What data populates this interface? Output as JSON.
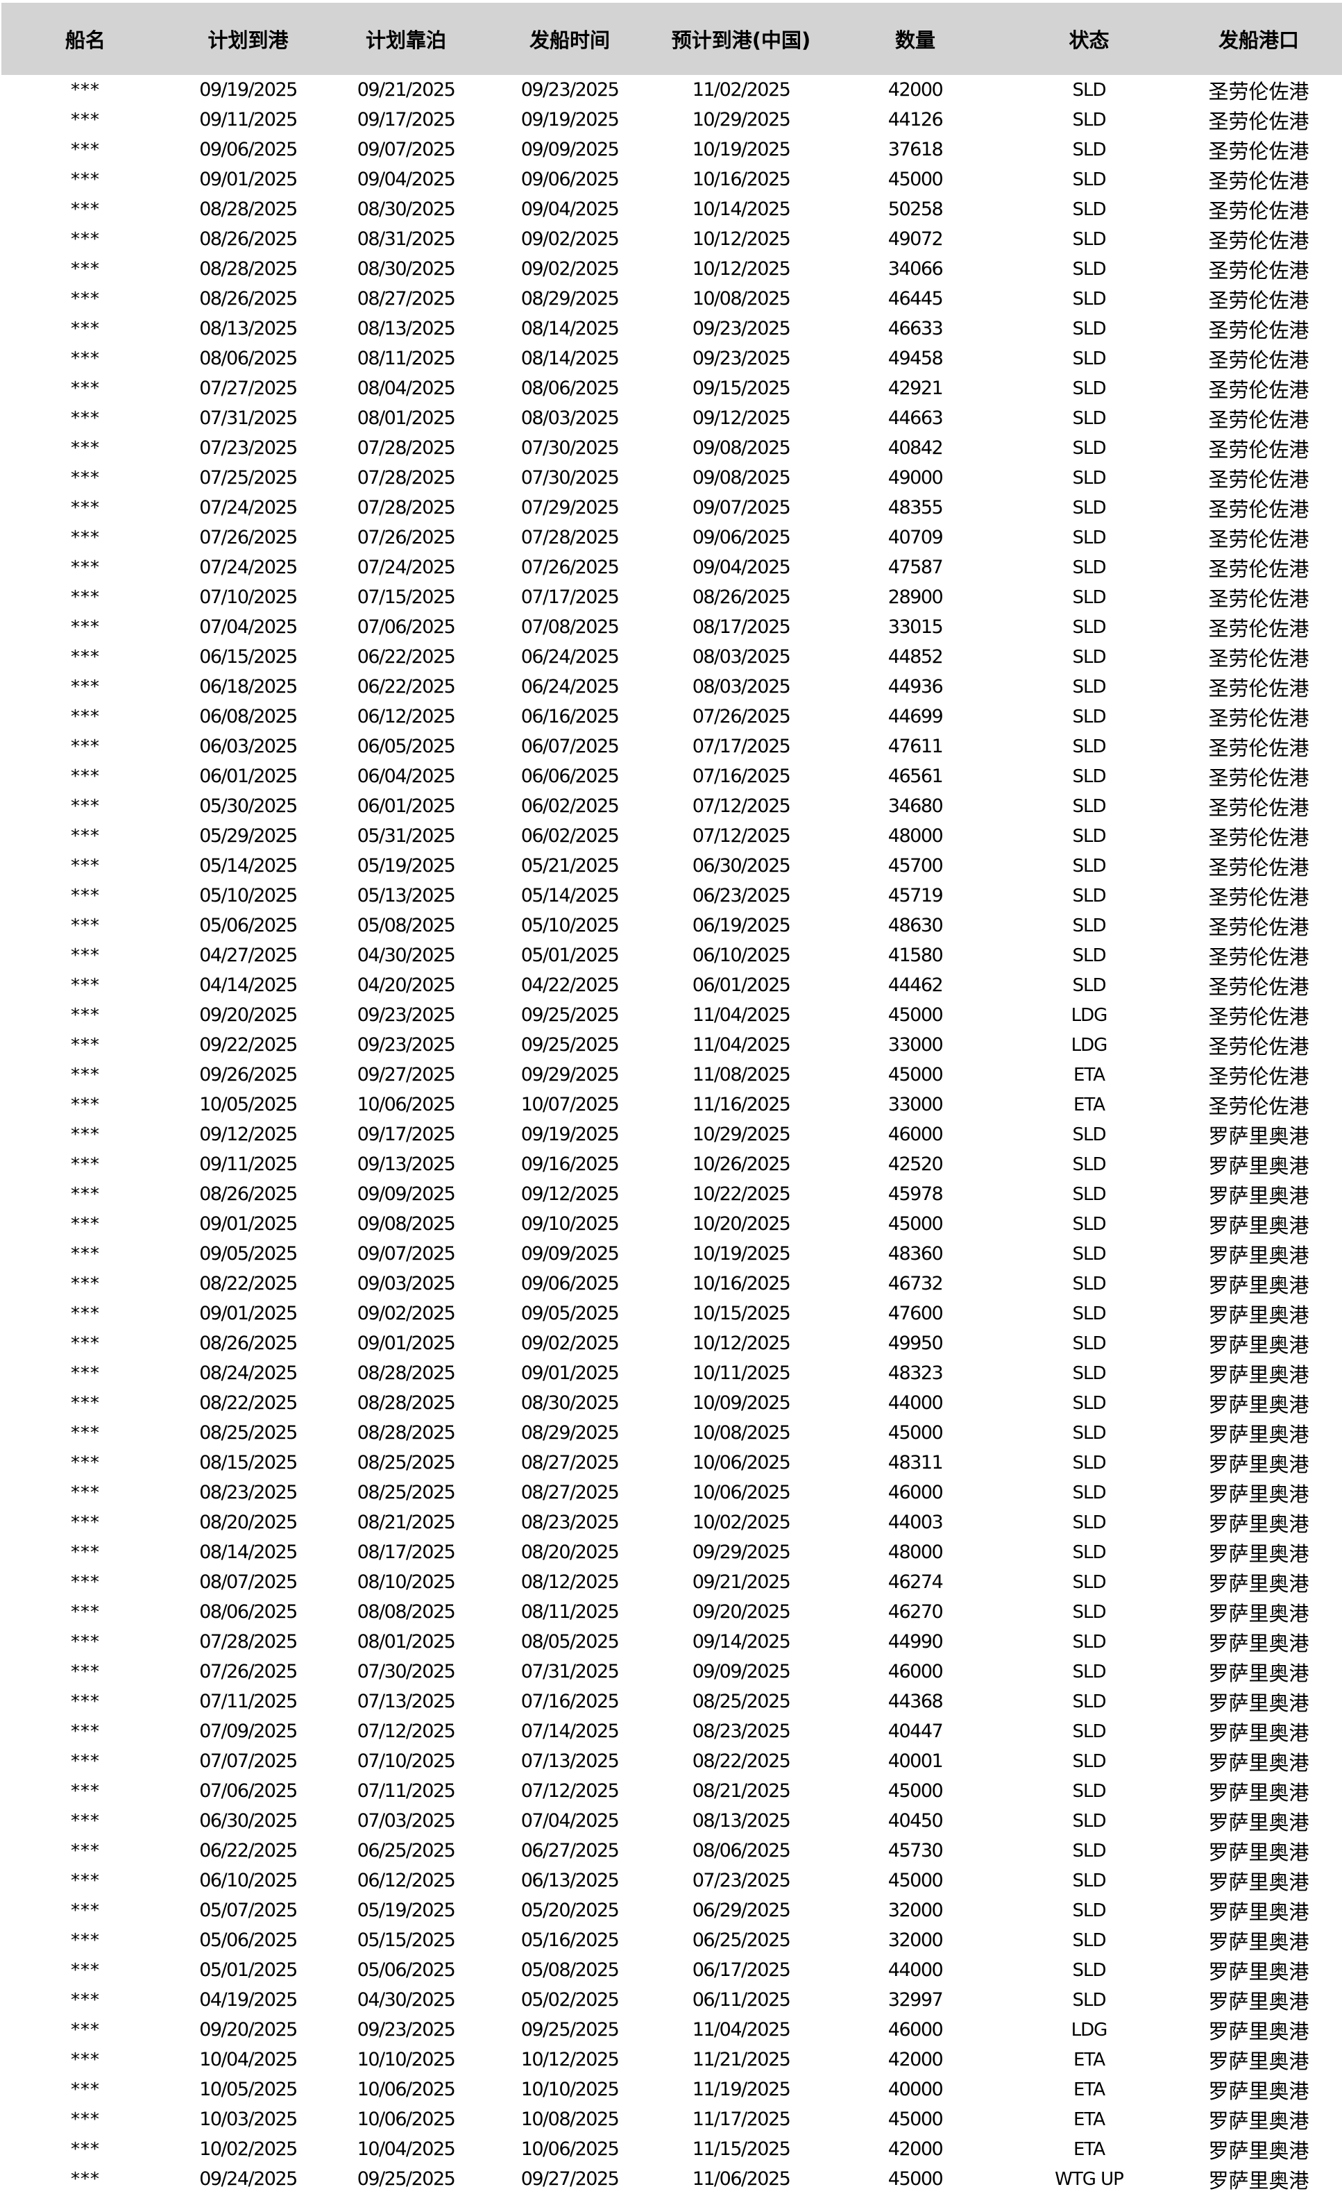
{
  "colors": {
    "header_bg": "#d3d3d3",
    "row_bg": "#ffffff",
    "text": "#000000"
  },
  "table": {
    "columns": [
      "船名",
      "计划到港",
      "计划靠泊",
      "发船时间",
      "预计到港(中国)",
      "数量",
      "状态",
      "发船港口"
    ],
    "rows": [
      [
        "***",
        "09/19/2025",
        "09/21/2025",
        "09/23/2025",
        "11/02/2025",
        "42000",
        "SLD",
        "圣劳伦佐港"
      ],
      [
        "***",
        "09/11/2025",
        "09/17/2025",
        "09/19/2025",
        "10/29/2025",
        "44126",
        "SLD",
        "圣劳伦佐港"
      ],
      [
        "***",
        "09/06/2025",
        "09/07/2025",
        "09/09/2025",
        "10/19/2025",
        "37618",
        "SLD",
        "圣劳伦佐港"
      ],
      [
        "***",
        "09/01/2025",
        "09/04/2025",
        "09/06/2025",
        "10/16/2025",
        "45000",
        "SLD",
        "圣劳伦佐港"
      ],
      [
        "***",
        "08/28/2025",
        "08/30/2025",
        "09/04/2025",
        "10/14/2025",
        "50258",
        "SLD",
        "圣劳伦佐港"
      ],
      [
        "***",
        "08/26/2025",
        "08/31/2025",
        "09/02/2025",
        "10/12/2025",
        "49072",
        "SLD",
        "圣劳伦佐港"
      ],
      [
        "***",
        "08/28/2025",
        "08/30/2025",
        "09/02/2025",
        "10/12/2025",
        "34066",
        "SLD",
        "圣劳伦佐港"
      ],
      [
        "***",
        "08/26/2025",
        "08/27/2025",
        "08/29/2025",
        "10/08/2025",
        "46445",
        "SLD",
        "圣劳伦佐港"
      ],
      [
        "***",
        "08/13/2025",
        "08/13/2025",
        "08/14/2025",
        "09/23/2025",
        "46633",
        "SLD",
        "圣劳伦佐港"
      ],
      [
        "***",
        "08/06/2025",
        "08/11/2025",
        "08/14/2025",
        "09/23/2025",
        "49458",
        "SLD",
        "圣劳伦佐港"
      ],
      [
        "***",
        "07/27/2025",
        "08/04/2025",
        "08/06/2025",
        "09/15/2025",
        "42921",
        "SLD",
        "圣劳伦佐港"
      ],
      [
        "***",
        "07/31/2025",
        "08/01/2025",
        "08/03/2025",
        "09/12/2025",
        "44663",
        "SLD",
        "圣劳伦佐港"
      ],
      [
        "***",
        "07/23/2025",
        "07/28/2025",
        "07/30/2025",
        "09/08/2025",
        "40842",
        "SLD",
        "圣劳伦佐港"
      ],
      [
        "***",
        "07/25/2025",
        "07/28/2025",
        "07/30/2025",
        "09/08/2025",
        "49000",
        "SLD",
        "圣劳伦佐港"
      ],
      [
        "***",
        "07/24/2025",
        "07/28/2025",
        "07/29/2025",
        "09/07/2025",
        "48355",
        "SLD",
        "圣劳伦佐港"
      ],
      [
        "***",
        "07/26/2025",
        "07/26/2025",
        "07/28/2025",
        "09/06/2025",
        "40709",
        "SLD",
        "圣劳伦佐港"
      ],
      [
        "***",
        "07/24/2025",
        "07/24/2025",
        "07/26/2025",
        "09/04/2025",
        "47587",
        "SLD",
        "圣劳伦佐港"
      ],
      [
        "***",
        "07/10/2025",
        "07/15/2025",
        "07/17/2025",
        "08/26/2025",
        "28900",
        "SLD",
        "圣劳伦佐港"
      ],
      [
        "***",
        "07/04/2025",
        "07/06/2025",
        "07/08/2025",
        "08/17/2025",
        "33015",
        "SLD",
        "圣劳伦佐港"
      ],
      [
        "***",
        "06/15/2025",
        "06/22/2025",
        "06/24/2025",
        "08/03/2025",
        "44852",
        "SLD",
        "圣劳伦佐港"
      ],
      [
        "***",
        "06/18/2025",
        "06/22/2025",
        "06/24/2025",
        "08/03/2025",
        "44936",
        "SLD",
        "圣劳伦佐港"
      ],
      [
        "***",
        "06/08/2025",
        "06/12/2025",
        "06/16/2025",
        "07/26/2025",
        "44699",
        "SLD",
        "圣劳伦佐港"
      ],
      [
        "***",
        "06/03/2025",
        "06/05/2025",
        "06/07/2025",
        "07/17/2025",
        "47611",
        "SLD",
        "圣劳伦佐港"
      ],
      [
        "***",
        "06/01/2025",
        "06/04/2025",
        "06/06/2025",
        "07/16/2025",
        "46561",
        "SLD",
        "圣劳伦佐港"
      ],
      [
        "***",
        "05/30/2025",
        "06/01/2025",
        "06/02/2025",
        "07/12/2025",
        "34680",
        "SLD",
        "圣劳伦佐港"
      ],
      [
        "***",
        "05/29/2025",
        "05/31/2025",
        "06/02/2025",
        "07/12/2025",
        "48000",
        "SLD",
        "圣劳伦佐港"
      ],
      [
        "***",
        "05/14/2025",
        "05/19/2025",
        "05/21/2025",
        "06/30/2025",
        "45700",
        "SLD",
        "圣劳伦佐港"
      ],
      [
        "***",
        "05/10/2025",
        "05/13/2025",
        "05/14/2025",
        "06/23/2025",
        "45719",
        "SLD",
        "圣劳伦佐港"
      ],
      [
        "***",
        "05/06/2025",
        "05/08/2025",
        "05/10/2025",
        "06/19/2025",
        "48630",
        "SLD",
        "圣劳伦佐港"
      ],
      [
        "***",
        "04/27/2025",
        "04/30/2025",
        "05/01/2025",
        "06/10/2025",
        "41580",
        "SLD",
        "圣劳伦佐港"
      ],
      [
        "***",
        "04/14/2025",
        "04/20/2025",
        "04/22/2025",
        "06/01/2025",
        "44462",
        "SLD",
        "圣劳伦佐港"
      ],
      [
        "***",
        "09/20/2025",
        "09/23/2025",
        "09/25/2025",
        "11/04/2025",
        "45000",
        "LDG",
        "圣劳伦佐港"
      ],
      [
        "***",
        "09/22/2025",
        "09/23/2025",
        "09/25/2025",
        "11/04/2025",
        "33000",
        "LDG",
        "圣劳伦佐港"
      ],
      [
        "***",
        "09/26/2025",
        "09/27/2025",
        "09/29/2025",
        "11/08/2025",
        "45000",
        "ETA",
        "圣劳伦佐港"
      ],
      [
        "***",
        "10/05/2025",
        "10/06/2025",
        "10/07/2025",
        "11/16/2025",
        "33000",
        "ETA",
        "圣劳伦佐港"
      ],
      [
        "***",
        "09/12/2025",
        "09/17/2025",
        "09/19/2025",
        "10/29/2025",
        "46000",
        "SLD",
        "罗萨里奥港"
      ],
      [
        "***",
        "09/11/2025",
        "09/13/2025",
        "09/16/2025",
        "10/26/2025",
        "42520",
        "SLD",
        "罗萨里奥港"
      ],
      [
        "***",
        "08/26/2025",
        "09/09/2025",
        "09/12/2025",
        "10/22/2025",
        "45978",
        "SLD",
        "罗萨里奥港"
      ],
      [
        "***",
        "09/01/2025",
        "09/08/2025",
        "09/10/2025",
        "10/20/2025",
        "45000",
        "SLD",
        "罗萨里奥港"
      ],
      [
        "***",
        "09/05/2025",
        "09/07/2025",
        "09/09/2025",
        "10/19/2025",
        "48360",
        "SLD",
        "罗萨里奥港"
      ],
      [
        "***",
        "08/22/2025",
        "09/03/2025",
        "09/06/2025",
        "10/16/2025",
        "46732",
        "SLD",
        "罗萨里奥港"
      ],
      [
        "***",
        "09/01/2025",
        "09/02/2025",
        "09/05/2025",
        "10/15/2025",
        "47600",
        "SLD",
        "罗萨里奥港"
      ],
      [
        "***",
        "08/26/2025",
        "09/01/2025",
        "09/02/2025",
        "10/12/2025",
        "49950",
        "SLD",
        "罗萨里奥港"
      ],
      [
        "***",
        "08/24/2025",
        "08/28/2025",
        "09/01/2025",
        "10/11/2025",
        "48323",
        "SLD",
        "罗萨里奥港"
      ],
      [
        "***",
        "08/22/2025",
        "08/28/2025",
        "08/30/2025",
        "10/09/2025",
        "44000",
        "SLD",
        "罗萨里奥港"
      ],
      [
        "***",
        "08/25/2025",
        "08/28/2025",
        "08/29/2025",
        "10/08/2025",
        "45000",
        "SLD",
        "罗萨里奥港"
      ],
      [
        "***",
        "08/15/2025",
        "08/25/2025",
        "08/27/2025",
        "10/06/2025",
        "48311",
        "SLD",
        "罗萨里奥港"
      ],
      [
        "***",
        "08/23/2025",
        "08/25/2025",
        "08/27/2025",
        "10/06/2025",
        "46000",
        "SLD",
        "罗萨里奥港"
      ],
      [
        "***",
        "08/20/2025",
        "08/21/2025",
        "08/23/2025",
        "10/02/2025",
        "44003",
        "SLD",
        "罗萨里奥港"
      ],
      [
        "***",
        "08/14/2025",
        "08/17/2025",
        "08/20/2025",
        "09/29/2025",
        "48000",
        "SLD",
        "罗萨里奥港"
      ],
      [
        "***",
        "08/07/2025",
        "08/10/2025",
        "08/12/2025",
        "09/21/2025",
        "46274",
        "SLD",
        "罗萨里奥港"
      ],
      [
        "***",
        "08/06/2025",
        "08/08/2025",
        "08/11/2025",
        "09/20/2025",
        "46270",
        "SLD",
        "罗萨里奥港"
      ],
      [
        "***",
        "07/28/2025",
        "08/01/2025",
        "08/05/2025",
        "09/14/2025",
        "44990",
        "SLD",
        "罗萨里奥港"
      ],
      [
        "***",
        "07/26/2025",
        "07/30/2025",
        "07/31/2025",
        "09/09/2025",
        "46000",
        "SLD",
        "罗萨里奥港"
      ],
      [
        "***",
        "07/11/2025",
        "07/13/2025",
        "07/16/2025",
        "08/25/2025",
        "44368",
        "SLD",
        "罗萨里奥港"
      ],
      [
        "***",
        "07/09/2025",
        "07/12/2025",
        "07/14/2025",
        "08/23/2025",
        "40447",
        "SLD",
        "罗萨里奥港"
      ],
      [
        "***",
        "07/07/2025",
        "07/10/2025",
        "07/13/2025",
        "08/22/2025",
        "40001",
        "SLD",
        "罗萨里奥港"
      ],
      [
        "***",
        "07/06/2025",
        "07/11/2025",
        "07/12/2025",
        "08/21/2025",
        "45000",
        "SLD",
        "罗萨里奥港"
      ],
      [
        "***",
        "06/30/2025",
        "07/03/2025",
        "07/04/2025",
        "08/13/2025",
        "40450",
        "SLD",
        "罗萨里奥港"
      ],
      [
        "***",
        "06/22/2025",
        "06/25/2025",
        "06/27/2025",
        "08/06/2025",
        "45730",
        "SLD",
        "罗萨里奥港"
      ],
      [
        "***",
        "06/10/2025",
        "06/12/2025",
        "06/13/2025",
        "07/23/2025",
        "45000",
        "SLD",
        "罗萨里奥港"
      ],
      [
        "***",
        "05/07/2025",
        "05/19/2025",
        "05/20/2025",
        "06/29/2025",
        "32000",
        "SLD",
        "罗萨里奥港"
      ],
      [
        "***",
        "05/06/2025",
        "05/15/2025",
        "05/16/2025",
        "06/25/2025",
        "32000",
        "SLD",
        "罗萨里奥港"
      ],
      [
        "***",
        "05/01/2025",
        "05/06/2025",
        "05/08/2025",
        "06/17/2025",
        "44000",
        "SLD",
        "罗萨里奥港"
      ],
      [
        "***",
        "04/19/2025",
        "04/30/2025",
        "05/02/2025",
        "06/11/2025",
        "32997",
        "SLD",
        "罗萨里奥港"
      ],
      [
        "***",
        "09/20/2025",
        "09/23/2025",
        "09/25/2025",
        "11/04/2025",
        "46000",
        "LDG",
        "罗萨里奥港"
      ],
      [
        "***",
        "10/04/2025",
        "10/10/2025",
        "10/12/2025",
        "11/21/2025",
        "42000",
        "ETA",
        "罗萨里奥港"
      ],
      [
        "***",
        "10/05/2025",
        "10/06/2025",
        "10/10/2025",
        "11/19/2025",
        "40000",
        "ETA",
        "罗萨里奥港"
      ],
      [
        "***",
        "10/03/2025",
        "10/06/2025",
        "10/08/2025",
        "11/17/2025",
        "45000",
        "ETA",
        "罗萨里奥港"
      ],
      [
        "***",
        "10/02/2025",
        "10/04/2025",
        "10/06/2025",
        "11/15/2025",
        "42000",
        "ETA",
        "罗萨里奥港"
      ],
      [
        "***",
        "09/24/2025",
        "09/25/2025",
        "09/27/2025",
        "11/06/2025",
        "45000",
        "WTG UP",
        "罗萨里奥港"
      ]
    ]
  }
}
